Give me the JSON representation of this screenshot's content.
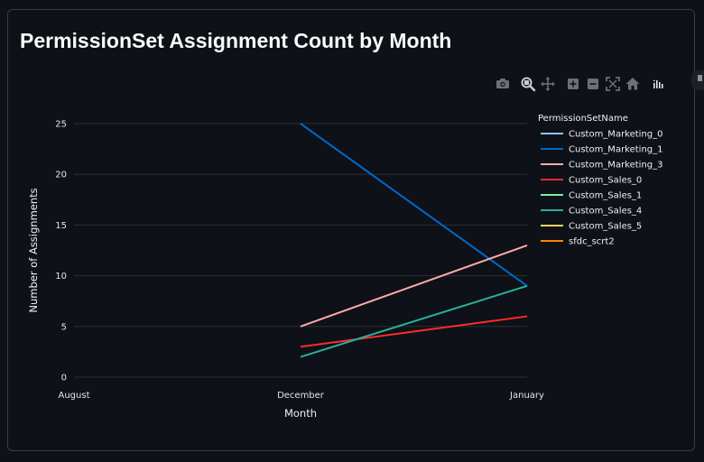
{
  "page": {
    "title": "PermissionSet Assignment Count by Month"
  },
  "toolbar": {
    "buttons": [
      {
        "name": "camera-icon",
        "tooltip": "Download plot as a png"
      },
      {
        "name": "zoom-icon",
        "tooltip": "Zoom",
        "active": true
      },
      {
        "name": "pan-icon",
        "tooltip": "Pan"
      },
      {
        "name": "zoom-in-icon",
        "tooltip": "Zoom in"
      },
      {
        "name": "zoom-out-icon",
        "tooltip": "Zoom out"
      },
      {
        "name": "autoscale-icon",
        "tooltip": "Autoscale"
      },
      {
        "name": "reset-axes-icon",
        "tooltip": "Reset axes"
      },
      {
        "name": "plotly-logo-icon",
        "tooltip": "Produced with Plotly"
      }
    ]
  },
  "colors": {
    "background": "#0e1117",
    "grid": "#2c2f36",
    "text": "#f0f0f0"
  },
  "chart_data": {
    "type": "line",
    "title": "PermissionSet Assignment Count by Month",
    "xlabel": "Month",
    "ylabel": "Number of Assignments",
    "categories": [
      "August",
      "December",
      "January"
    ],
    "ylim": [
      0,
      25
    ],
    "yticks": [
      0,
      5,
      10,
      15,
      20,
      25
    ],
    "grid": true,
    "legend": {
      "title": "PermissionSetName",
      "placement": "right"
    },
    "series": [
      {
        "name": "Custom_Marketing_0",
        "color": "#83c9ff",
        "points": []
      },
      {
        "name": "Custom_Marketing_1",
        "color": "#0068c9",
        "points": [
          {
            "x": "December",
            "y": 25
          },
          {
            "x": "January",
            "y": 9
          }
        ]
      },
      {
        "name": "Custom_Marketing_3",
        "color": "#ffabab",
        "points": [
          {
            "x": "December",
            "y": 5
          },
          {
            "x": "January",
            "y": 13
          }
        ]
      },
      {
        "name": "Custom_Sales_0",
        "color": "#ff2b2b",
        "points": [
          {
            "x": "December",
            "y": 3
          },
          {
            "x": "January",
            "y": 6
          }
        ]
      },
      {
        "name": "Custom_Sales_1",
        "color": "#7defa1",
        "points": []
      },
      {
        "name": "Custom_Sales_4",
        "color": "#29b09d",
        "points": [
          {
            "x": "December",
            "y": 2
          },
          {
            "x": "January",
            "y": 9
          }
        ]
      },
      {
        "name": "Custom_Sales_5",
        "color": "#ffd16a",
        "points": []
      },
      {
        "name": "sfdc_scrt2",
        "color": "#ff8700",
        "points": []
      }
    ]
  }
}
